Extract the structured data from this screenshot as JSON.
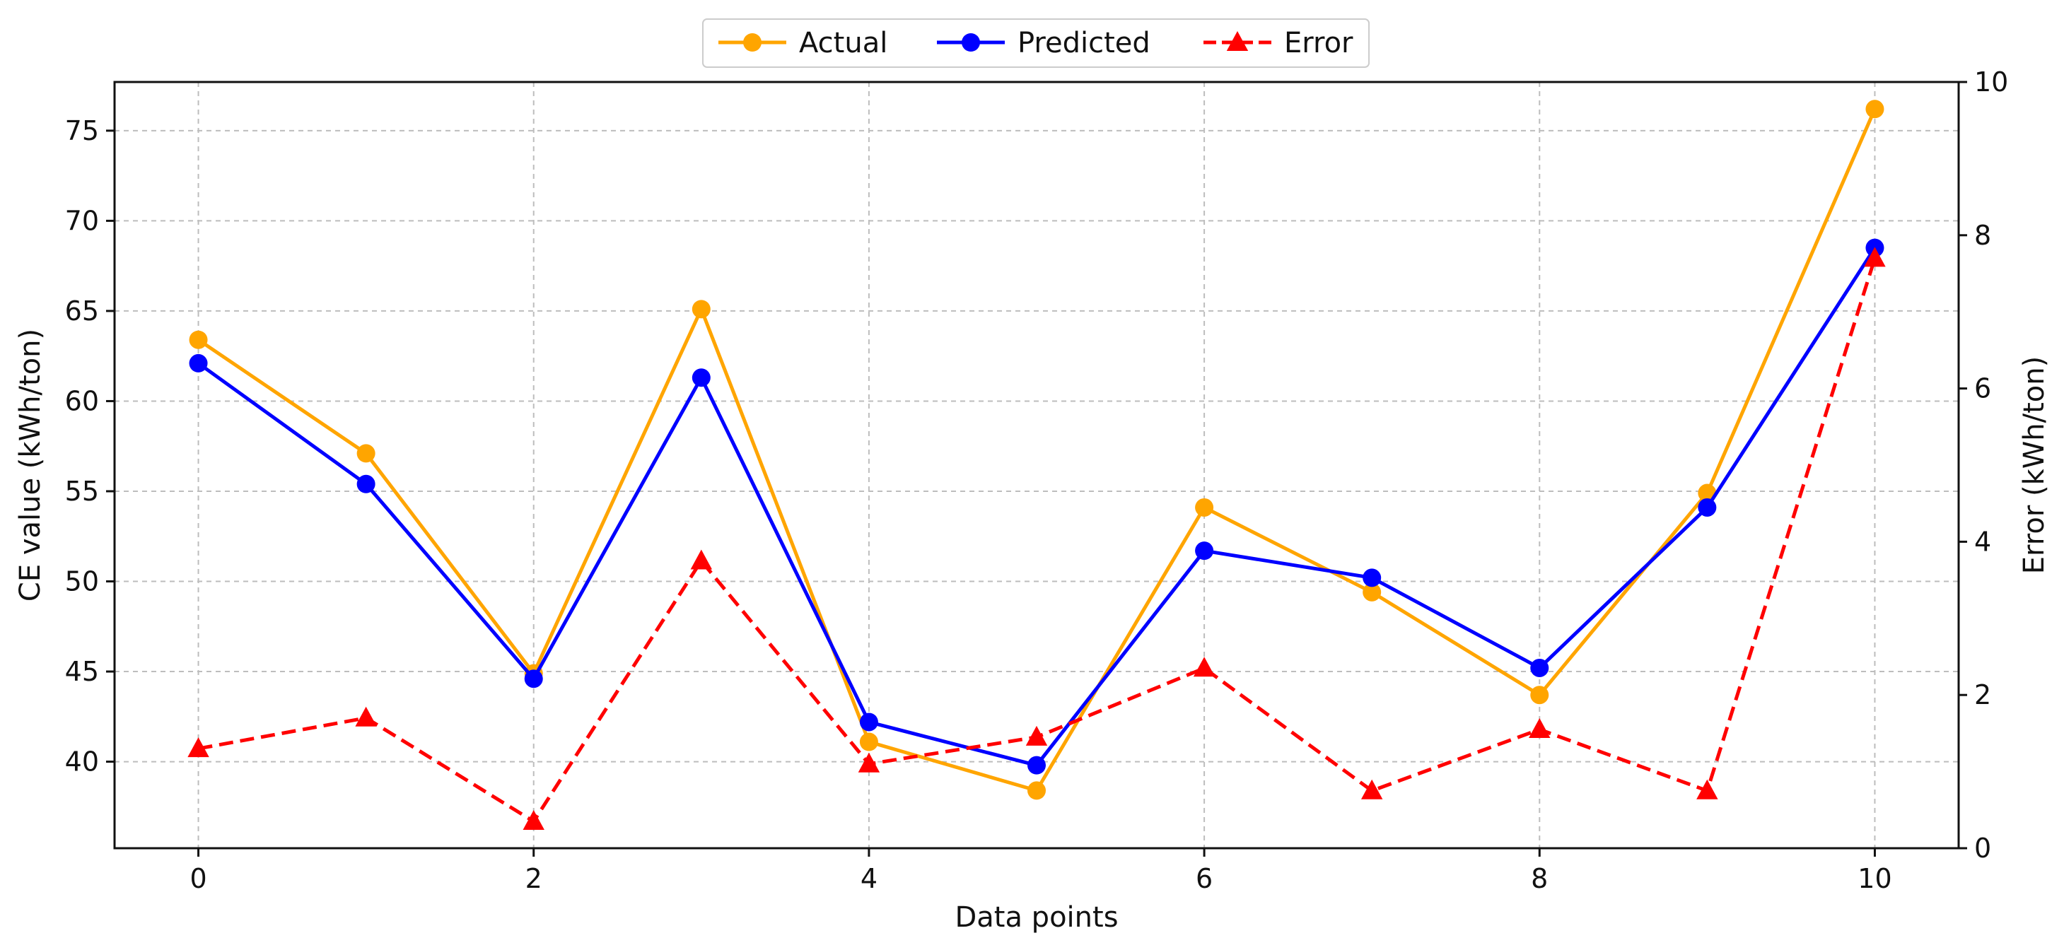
{
  "chart_data": {
    "type": "line",
    "title": "",
    "xlabel": "Data points",
    "ylabel": "CE value (kWh/ton)",
    "y2label": "Error (kWh/ton)",
    "x": [
      0,
      1,
      2,
      3,
      4,
      5,
      6,
      7,
      8,
      9,
      10
    ],
    "xlim": [
      -0.5,
      10.5
    ],
    "ylim": [
      35.2,
      77.7
    ],
    "y2lim": [
      0,
      10
    ],
    "xticks": [
      0,
      2,
      4,
      6,
      8,
      10
    ],
    "yticks": [
      40,
      45,
      50,
      55,
      60,
      65,
      70,
      75
    ],
    "y2ticks": [
      0,
      2,
      4,
      6,
      8,
      10
    ],
    "grid": true,
    "legend_position": "top-center",
    "series": [
      {
        "name": "Actual",
        "axis": "left",
        "color": "#FFA500",
        "line_style": "solid",
        "marker": "circle",
        "values": [
          63.4,
          57.1,
          44.9,
          65.1,
          41.1,
          38.4,
          54.1,
          49.4,
          43.7,
          54.9,
          76.2
        ]
      },
      {
        "name": "Predicted",
        "axis": "left",
        "color": "#0000FF",
        "line_style": "solid",
        "marker": "circle",
        "values": [
          62.1,
          55.4,
          44.6,
          61.3,
          42.2,
          39.8,
          51.7,
          50.2,
          45.2,
          54.1,
          68.5
        ]
      },
      {
        "name": "Error",
        "axis": "right",
        "color": "#FF0000",
        "line_style": "dashed",
        "marker": "triangle",
        "values": [
          1.3,
          1.7,
          0.35,
          3.75,
          1.1,
          1.45,
          2.35,
          0.75,
          1.55,
          0.75,
          7.7
        ]
      }
    ]
  }
}
